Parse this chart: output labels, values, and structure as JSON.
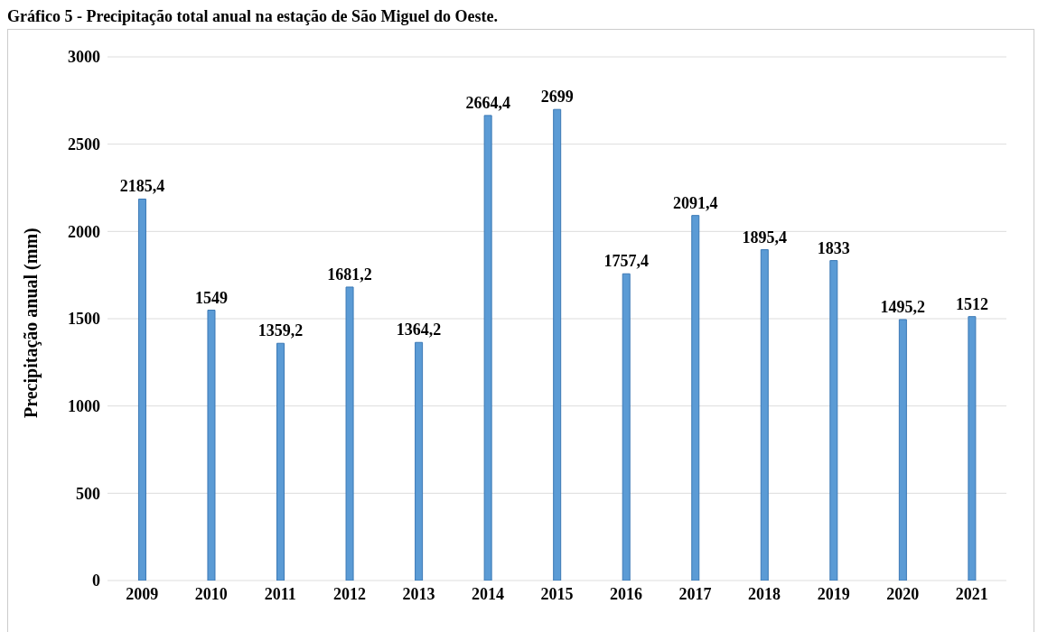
{
  "chart_data": {
    "type": "bar",
    "title": "Gráfico 5 - Precipitação total anual na estação de São Miguel do Oeste.",
    "ylabel": "Precipitação anual (mm)",
    "categories": [
      "2009",
      "2010",
      "2011",
      "2012",
      "2013",
      "2014",
      "2015",
      "2016",
      "2017",
      "2018",
      "2019",
      "2020",
      "2021"
    ],
    "values": [
      2185.4,
      1549,
      1359.2,
      1681.2,
      1364.2,
      2664.4,
      2699,
      1757.4,
      2091.4,
      1895.4,
      1833,
      1495.2,
      1512
    ],
    "value_labels": [
      "2185,4",
      "1549",
      "1359,2",
      "1681,2",
      "1364,2",
      "2664,4",
      "2699",
      "1757,4",
      "2091,4",
      "1895,4",
      "1833",
      "1495,2",
      "1512"
    ],
    "color": "#5b9bd5",
    "ylim": [
      0,
      3000
    ],
    "yticks": [
      0,
      500,
      1000,
      1500,
      2000,
      2500,
      3000
    ],
    "grid": "y"
  }
}
